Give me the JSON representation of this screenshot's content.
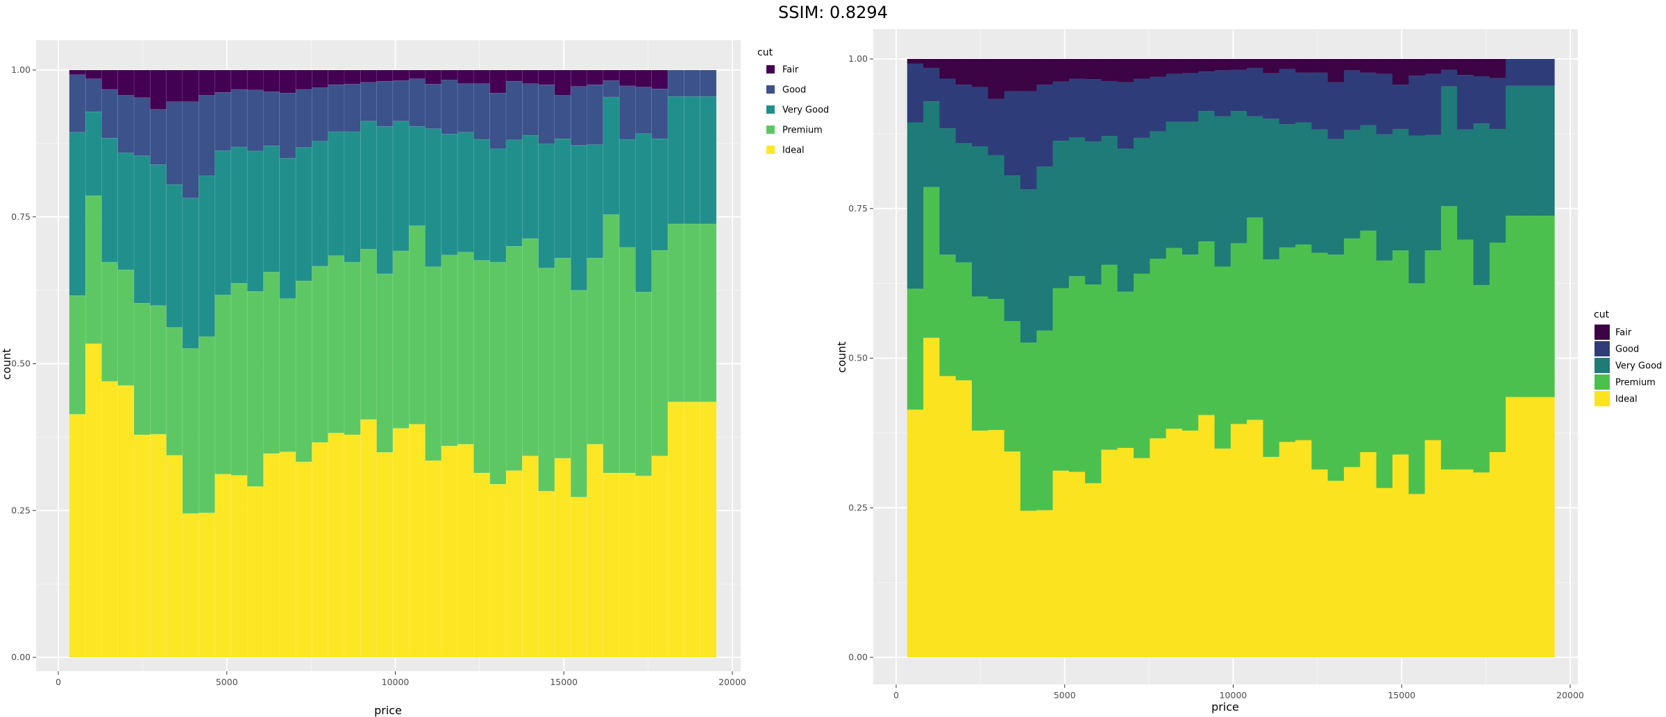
{
  "header": {
    "ssim_label": "SSIM: 0.8294"
  },
  "colors": {
    "panel_bg": "#ebebeb",
    "grid_major": "#ffffff",
    "tick_text": "#4d4d4d",
    "left_fills": [
      "#440154",
      "#3b528b",
      "#21908c",
      "#5dc863",
      "#fde725"
    ],
    "right_fills": [
      "#3c0345",
      "#2e3d7a",
      "#1f7b77",
      "#4cc04f",
      "#fbe31f"
    ]
  },
  "chart_data": [
    {
      "id": "left",
      "type": "bar",
      "stacking": "fill",
      "title": "",
      "xlabel": "price",
      "ylabel": "count",
      "xlim": [
        0,
        20000
      ],
      "ylim": [
        0,
        1
      ],
      "x_ticks": [
        0,
        5000,
        10000,
        15000,
        20000
      ],
      "x_tick_labels": [
        "0",
        "5000",
        "10000",
        "15000",
        "20000"
      ],
      "y_ticks": [
        0,
        0.25,
        0.5,
        0.75,
        1
      ],
      "y_tick_labels": [
        "0.00",
        "0.25",
        "0.50",
        "0.75",
        "1.00"
      ],
      "legend": {
        "title": "cut",
        "position": "right-top",
        "entries": [
          "Fair",
          "Good",
          "Very Good",
          "Premium",
          "Ideal"
        ]
      },
      "bins": {
        "start": 326,
        "width": 480,
        "count": 40
      },
      "series": [
        {
          "name": "Ideal",
          "cumulative_top": [
            0.414,
            0.534,
            0.47,
            0.463,
            0.379,
            0.38,
            0.344,
            0.245,
            0.246,
            0.312,
            0.31,
            0.291,
            0.347,
            0.35,
            0.333,
            0.366,
            0.382,
            0.379,
            0.405,
            0.349,
            0.39,
            0.397,
            0.335,
            0.36,
            0.363,
            0.314,
            0.295,
            0.318,
            0.343,
            0.283,
            0.339,
            0.273,
            0.363,
            0.314,
            0.314,
            0.309,
            0.343,
            0.435,
            0.435,
            0.435
          ]
        },
        {
          "name": "Premium",
          "cumulative_top": [
            0.616,
            0.786,
            0.673,
            0.66,
            0.603,
            0.599,
            0.562,
            0.526,
            0.546,
            0.617,
            0.637,
            0.623,
            0.656,
            0.611,
            0.641,
            0.666,
            0.684,
            0.673,
            0.695,
            0.653,
            0.692,
            0.735,
            0.665,
            0.685,
            0.69,
            0.676,
            0.673,
            0.7,
            0.713,
            0.663,
            0.68,
            0.625,
            0.68,
            0.754,
            0.698,
            0.622,
            0.693,
            0.738,
            0.738,
            0.738
          ]
        },
        {
          "name": "Very Good",
          "cumulative_top": [
            0.894,
            0.929,
            0.884,
            0.859,
            0.854,
            0.839,
            0.805,
            0.782,
            0.82,
            0.863,
            0.869,
            0.862,
            0.871,
            0.85,
            0.868,
            0.879,
            0.895,
            0.895,
            0.913,
            0.904,
            0.913,
            0.904,
            0.9,
            0.891,
            0.894,
            0.882,
            0.866,
            0.881,
            0.889,
            0.874,
            0.883,
            0.872,
            0.873,
            0.954,
            0.882,
            0.892,
            0.883,
            0.955,
            0.955,
            0.955
          ]
        },
        {
          "name": "Good",
          "cumulative_top": [
            0.992,
            0.985,
            0.967,
            0.957,
            0.953,
            0.933,
            0.946,
            0.946,
            0.957,
            0.962,
            0.967,
            0.966,
            0.963,
            0.961,
            0.967,
            0.97,
            0.975,
            0.976,
            0.979,
            0.981,
            0.982,
            0.985,
            0.976,
            0.983,
            0.977,
            0.977,
            0.961,
            0.981,
            0.977,
            0.975,
            0.957,
            0.972,
            0.975,
            0.982,
            0.973,
            0.971,
            0.968,
            1.0,
            1.0,
            1.0
          ]
        },
        {
          "name": "Fair",
          "cumulative_top": [
            1,
            1,
            1,
            1,
            1,
            1,
            1,
            1,
            1,
            1,
            1,
            1,
            1,
            1,
            1,
            1,
            1,
            1,
            1,
            1,
            1,
            1,
            1,
            1,
            1,
            1,
            1,
            1,
            1,
            1,
            1,
            1,
            1,
            1,
            1,
            1,
            1,
            1,
            1,
            1
          ]
        }
      ]
    },
    {
      "id": "right",
      "type": "bar",
      "stacking": "fill",
      "title": "",
      "xlabel": "price",
      "ylabel": "count",
      "xlim": [
        0,
        20000
      ],
      "ylim": [
        0,
        1
      ],
      "x_ticks": [
        0,
        5000,
        10000,
        15000,
        20000
      ],
      "x_tick_labels": [
        "0",
        "5000",
        "10000",
        "15000",
        "20000"
      ],
      "y_ticks": [
        0,
        0.25,
        0.5,
        0.75,
        1
      ],
      "y_tick_labels": [
        "0.00",
        "0.25",
        "0.50",
        "0.75",
        "1.00"
      ],
      "legend": {
        "title": "cut",
        "position": "right",
        "entries": [
          "Fair",
          "Good",
          "Very Good",
          "Premium",
          "Ideal"
        ]
      },
      "bins": {
        "start": 326,
        "width": 480,
        "count": 40
      },
      "series": [
        {
          "name": "Ideal",
          "cumulative_top": [
            0.414,
            0.534,
            0.47,
            0.463,
            0.379,
            0.38,
            0.344,
            0.245,
            0.246,
            0.312,
            0.31,
            0.291,
            0.347,
            0.35,
            0.333,
            0.366,
            0.382,
            0.379,
            0.405,
            0.349,
            0.39,
            0.397,
            0.335,
            0.36,
            0.363,
            0.314,
            0.295,
            0.318,
            0.343,
            0.283,
            0.339,
            0.273,
            0.363,
            0.314,
            0.314,
            0.309,
            0.343,
            0.435,
            0.435,
            0.435
          ]
        },
        {
          "name": "Premium",
          "cumulative_top": [
            0.616,
            0.786,
            0.673,
            0.66,
            0.603,
            0.599,
            0.562,
            0.526,
            0.546,
            0.617,
            0.637,
            0.623,
            0.656,
            0.611,
            0.641,
            0.666,
            0.684,
            0.673,
            0.695,
            0.653,
            0.692,
            0.735,
            0.665,
            0.685,
            0.69,
            0.676,
            0.673,
            0.7,
            0.713,
            0.663,
            0.68,
            0.625,
            0.68,
            0.754,
            0.698,
            0.622,
            0.693,
            0.738,
            0.738,
            0.738
          ]
        },
        {
          "name": "Very Good",
          "cumulative_top": [
            0.894,
            0.929,
            0.884,
            0.859,
            0.854,
            0.839,
            0.805,
            0.782,
            0.82,
            0.863,
            0.869,
            0.862,
            0.871,
            0.85,
            0.868,
            0.879,
            0.895,
            0.895,
            0.913,
            0.904,
            0.913,
            0.904,
            0.9,
            0.891,
            0.894,
            0.882,
            0.866,
            0.881,
            0.889,
            0.874,
            0.883,
            0.872,
            0.873,
            0.954,
            0.882,
            0.892,
            0.883,
            0.955,
            0.955,
            0.955
          ]
        },
        {
          "name": "Good",
          "cumulative_top": [
            0.992,
            0.985,
            0.967,
            0.957,
            0.953,
            0.933,
            0.946,
            0.946,
            0.957,
            0.962,
            0.967,
            0.966,
            0.963,
            0.961,
            0.967,
            0.97,
            0.975,
            0.976,
            0.979,
            0.981,
            0.982,
            0.985,
            0.976,
            0.983,
            0.977,
            0.977,
            0.961,
            0.981,
            0.977,
            0.975,
            0.957,
            0.972,
            0.975,
            0.982,
            0.973,
            0.971,
            0.968,
            1.0,
            1.0,
            1.0
          ]
        },
        {
          "name": "Fair",
          "cumulative_top": [
            1,
            1,
            1,
            1,
            1,
            1,
            1,
            1,
            1,
            1,
            1,
            1,
            1,
            1,
            1,
            1,
            1,
            1,
            1,
            1,
            1,
            1,
            1,
            1,
            1,
            1,
            1,
            1,
            1,
            1,
            1,
            1,
            1,
            1,
            1,
            1,
            1,
            1,
            1,
            1
          ]
        }
      ]
    }
  ]
}
